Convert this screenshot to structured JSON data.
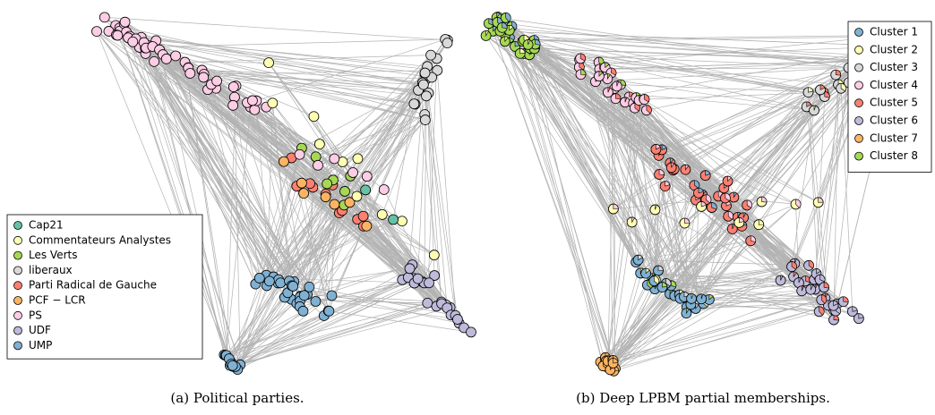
{
  "figures": [
    {
      "caption": "(a) Political parties.",
      "legend": [
        {
          "label": "Cap21",
          "color": "#66c2a5"
        },
        {
          "label": "Commentateurs Analystes",
          "color": "#ffffb3"
        },
        {
          "label": "Les Verts",
          "color": "#a6d854"
        },
        {
          "label": "liberaux",
          "color": "#d9d9d9"
        },
        {
          "label": "Parti Radical de Gauche",
          "color": "#fb8072"
        },
        {
          "label": "PCF − LCR",
          "color": "#fdb462"
        },
        {
          "label": "PS",
          "color": "#fccde5"
        },
        {
          "label": "UDF",
          "color": "#bebada"
        },
        {
          "label": "UMP",
          "color": "#80b1d3"
        }
      ]
    },
    {
      "caption": "(b) Deep LPBM partial memberships.",
      "legend": [
        {
          "label": "Cluster 1",
          "color": "#80b1d3"
        },
        {
          "label": "Cluster 2",
          "color": "#ffffb3"
        },
        {
          "label": "Cluster 3",
          "color": "#d9d9d9"
        },
        {
          "label": "Cluster 4",
          "color": "#fccde5"
        },
        {
          "label": "Cluster 5",
          "color": "#fb8072"
        },
        {
          "label": "Cluster 6",
          "color": "#bebada"
        },
        {
          "label": "Cluster 7",
          "color": "#fdb462"
        },
        {
          "label": "Cluster 8",
          "color": "#a6d854"
        }
      ]
    }
  ]
}
